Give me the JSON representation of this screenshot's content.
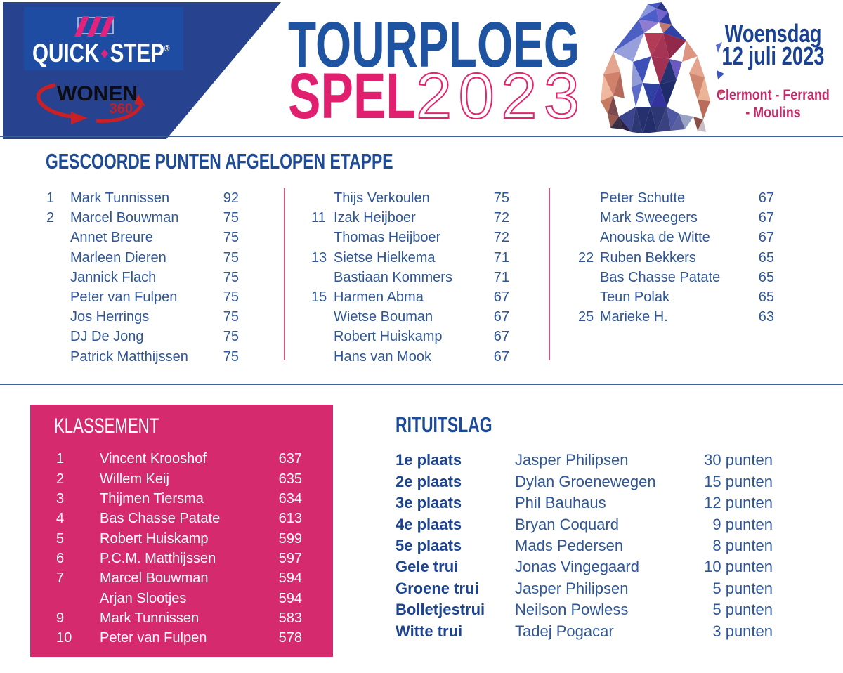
{
  "header": {
    "quickstep": {
      "word1": "QUICK",
      "word2": "STEP",
      "reg": "®"
    },
    "wonen": {
      "word": "WONEN",
      "num": "360"
    },
    "title_line1": "TOURPLOEG",
    "title_line2": "SPEL",
    "title_year": "2023",
    "date_line1": "Woensdag",
    "date_line2": "12 juli 2023",
    "route_line1": "Clermont - Ferrand",
    "route_line2": "- Moulins"
  },
  "etappe": {
    "heading": "GESCOORDE PUNTEN AFGELOPEN ETAPPE",
    "col1": [
      {
        "rank": "1",
        "name": "Mark Tunnissen",
        "points": "92"
      },
      {
        "rank": "2",
        "name": "Marcel Bouwman",
        "points": "75"
      },
      {
        "rank": "",
        "name": "Annet Breure",
        "points": "75"
      },
      {
        "rank": "",
        "name": "Marleen Dieren",
        "points": "75"
      },
      {
        "rank": "",
        "name": "Jannick Flach",
        "points": "75"
      },
      {
        "rank": "",
        "name": "Peter van Fulpen",
        "points": "75"
      },
      {
        "rank": "",
        "name": "Jos Herrings",
        "points": "75"
      },
      {
        "rank": "",
        "name": "DJ De Jong",
        "points": "75"
      },
      {
        "rank": "",
        "name": "Patrick Matthijssen",
        "points": "75"
      }
    ],
    "col2": [
      {
        "rank": "",
        "name": "Thijs Verkoulen",
        "points": "75"
      },
      {
        "rank": "11",
        "name": "Izak Heijboer",
        "points": "72"
      },
      {
        "rank": "",
        "name": "Thomas Heijboer",
        "points": "72"
      },
      {
        "rank": "13",
        "name": "Sietse Hielkema",
        "points": "71"
      },
      {
        "rank": "",
        "name": "Bastiaan Kommers",
        "points": "71"
      },
      {
        "rank": "15",
        "name": "Harmen Abma",
        "points": "67"
      },
      {
        "rank": "",
        "name": "Wietse Bouman",
        "points": "67"
      },
      {
        "rank": "",
        "name": "Robert Huiskamp",
        "points": "67"
      },
      {
        "rank": "",
        "name": "Hans van Mook",
        "points": "67"
      }
    ],
    "col3": [
      {
        "rank": "",
        "name": "Peter Schutte",
        "points": "67"
      },
      {
        "rank": "",
        "name": "Mark Sweegers",
        "points": "67"
      },
      {
        "rank": "",
        "name": "Anouska de Witte",
        "points": "67"
      },
      {
        "rank": "22",
        "name": "Ruben Bekkers",
        "points": "65"
      },
      {
        "rank": "",
        "name": "Bas Chasse Patate",
        "points": "65"
      },
      {
        "rank": "",
        "name": "Teun Polak",
        "points": "65"
      },
      {
        "rank": "25",
        "name": "Marieke H.",
        "points": "63"
      }
    ]
  },
  "klassement": {
    "heading": "KLASSEMENT",
    "rows": [
      {
        "rank": "1",
        "name": "Vincent Krooshof",
        "points": "637"
      },
      {
        "rank": "2",
        "name": "Willem Keij",
        "points": "635"
      },
      {
        "rank": "3",
        "name": "Thijmen Tiersma",
        "points": "634"
      },
      {
        "rank": "4",
        "name": "Bas Chasse Patate",
        "points": "613"
      },
      {
        "rank": "5",
        "name": "Robert Huiskamp",
        "points": "599"
      },
      {
        "rank": "6",
        "name": "P.C.M. Matthijssen",
        "points": "597"
      },
      {
        "rank": "7",
        "name": "Marcel Bouwman",
        "points": "594"
      },
      {
        "rank": "",
        "name": "Arjan Slootjes",
        "points": "594"
      },
      {
        "rank": "9",
        "name": "Mark Tunnissen",
        "points": "583"
      },
      {
        "rank": "10",
        "name": "Peter van Fulpen",
        "points": "578"
      }
    ]
  },
  "rituitslag": {
    "heading": "RITUITSLAG",
    "rows": [
      {
        "label": "1e plaats",
        "name": "Jasper Philipsen",
        "points": "30 punten"
      },
      {
        "label": "2e plaats",
        "name": "Dylan Groenewegen",
        "points": "15 punten"
      },
      {
        "label": "3e plaats",
        "name": "Phil Bauhaus",
        "points": "12 punten"
      },
      {
        "label": "4e plaats",
        "name": "Bryan Coquard",
        "points": "9 punten"
      },
      {
        "label": "5e plaats",
        "name": "Mads Pedersen",
        "points": "8 punten"
      },
      {
        "label": "Gele trui",
        "name": "Jonas Vingegaard",
        "points": "10 punten"
      },
      {
        "label": "Groene trui",
        "name": "Jasper Philipsen",
        "points": "5 punten"
      },
      {
        "label": "Bolletjestrui",
        "name": "Neilson Powless",
        "points": "5 punten"
      },
      {
        "label": "Witte trui",
        "name": "Tadej Pogacar",
        "points": "3 punten"
      }
    ]
  },
  "colors": {
    "banner_blue": "#27428e",
    "qsbox_blue": "#1e4ca3",
    "navy_text": "#1d4b97",
    "row_blue": "#2f5697",
    "pink": "#e0206f",
    "klassement_pink": "#d62a6e",
    "rule_blue": "#3e6096",
    "wonen_red": "#c92025"
  }
}
